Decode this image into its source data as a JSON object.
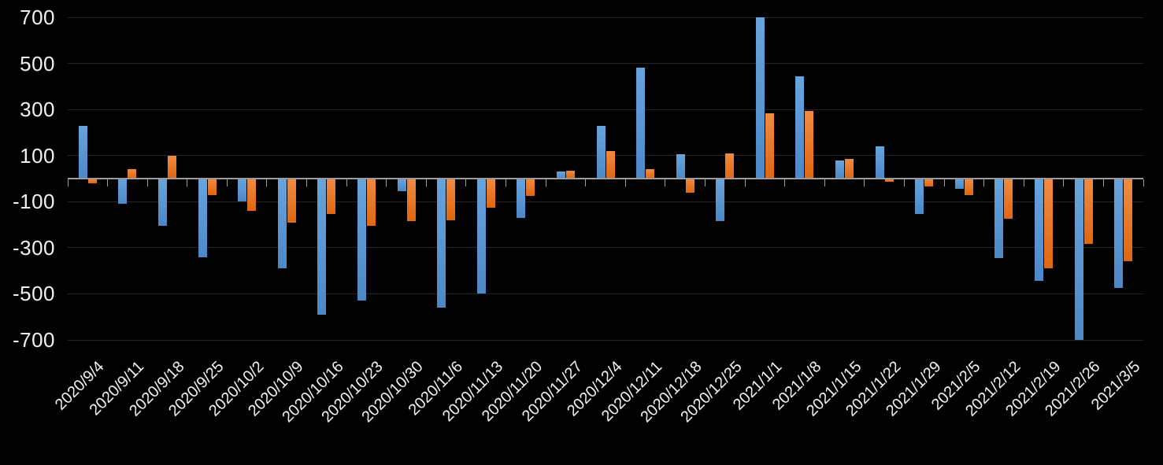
{
  "chart_data": {
    "type": "bar",
    "title": "",
    "xlabel": "",
    "ylabel": "",
    "categories": [
      "2020/9/4",
      "2020/9/11",
      "2020/9/18",
      "2020/9/25",
      "2020/10/2",
      "2020/10/9",
      "2020/10/16",
      "2020/10/23",
      "2020/10/30",
      "2020/11/6",
      "2020/11/13",
      "2020/11/20",
      "2020/11/27",
      "2020/12/4",
      "2020/12/11",
      "2020/12/18",
      "2020/12/25",
      "2021/1/1",
      "2021/1/8",
      "2021/1/15",
      "2021/1/22",
      "2021/1/29",
      "2021/2/5",
      "2021/2/12",
      "2021/2/19",
      "2021/2/26",
      "2021/3/5"
    ],
    "series": [
      {
        "name": "blue-series",
        "color": "#5B9BD5",
        "color_top": "#67A4DD",
        "color_bottom": "#4C88C9",
        "values": [
          230,
          -110,
          -205,
          -340,
          -100,
          -390,
          -590,
          -530,
          -55,
          -560,
          -500,
          -170,
          30,
          230,
          480,
          105,
          -185,
          700,
          445,
          80,
          140,
          -155,
          -45,
          -345,
          -445,
          -700,
          -475
        ]
      },
      {
        "name": "orange-series",
        "color": "#ED7D31",
        "color_top": "#F08B42",
        "color_bottom": "#E0660F",
        "values": [
          -20,
          40,
          100,
          -70,
          -140,
          -190,
          -155,
          -205,
          -185,
          -180,
          -125,
          -75,
          35,
          120,
          40,
          -60,
          110,
          285,
          295,
          85,
          -15,
          -35,
          -70,
          -175,
          -390,
          -285,
          -360
        ]
      }
    ],
    "ylim": [
      -700,
      700
    ],
    "yticks": [
      700,
      500,
      300,
      100,
      -100,
      -300,
      -500,
      -700
    ],
    "grid": true,
    "legend_position": "none",
    "x_tick_rotation_deg": 45
  },
  "colors": {
    "background": "#000000",
    "gridline": "#242424",
    "axis_line": "#9B9B9B",
    "tick_label": "#F2F2F2"
  }
}
